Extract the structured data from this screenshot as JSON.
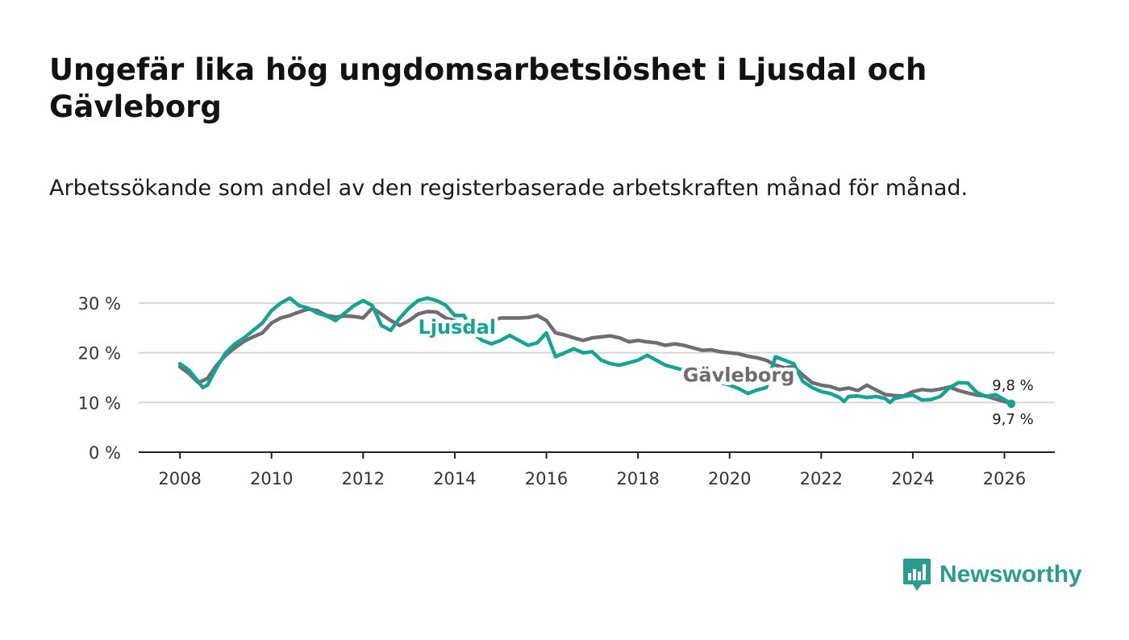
{
  "header": {
    "title": "Ungefär lika hög ungdomsarbetslöshet i Ljusdal och Gävleborg",
    "subtitle": "Arbetssökande som andel av den registerbaserade arbetskraften månad för månad."
  },
  "branding": {
    "name": "Newsworthy",
    "icon": "bar-chart-speech-bubble-icon"
  },
  "colors": {
    "ljusdal": "#15a396",
    "gavleborg": "#6e6e72",
    "grid": "#d7d7d7",
    "axis": "#222222",
    "brand": "#2b9c92"
  },
  "chart_data": {
    "type": "line",
    "title": "Ungefär lika hög ungdomsarbetslöshet i Ljusdal och Gävleborg",
    "xlabel": "",
    "ylabel": "",
    "xlim": [
      2007.1,
      2027.1
    ],
    "ylim": [
      0,
      30
    ],
    "y_ticks": [
      0,
      10,
      20,
      30
    ],
    "y_tick_labels": [
      "0 %",
      "10 %",
      "20 %",
      "30 %"
    ],
    "x_ticks": [
      2008,
      2010,
      2012,
      2014,
      2016,
      2018,
      2020,
      2022,
      2024,
      2026
    ],
    "x_tick_labels": [
      "2008",
      "2010",
      "2012",
      "2014",
      "2016",
      "2018",
      "2020",
      "2022",
      "2024",
      "2026"
    ],
    "grid": true,
    "series": [
      {
        "name": "Gävleborg",
        "label": "Gävleborg",
        "end_label": "9,8 %",
        "points": [
          [
            2008.0,
            17.2
          ],
          [
            2008.2,
            15.8
          ],
          [
            2008.4,
            14.0
          ],
          [
            2008.6,
            14.8
          ],
          [
            2008.8,
            17.5
          ],
          [
            2009.0,
            19.5
          ],
          [
            2009.2,
            21.0
          ],
          [
            2009.4,
            22.3
          ],
          [
            2009.6,
            23.2
          ],
          [
            2009.8,
            24.0
          ],
          [
            2010.0,
            26.0
          ],
          [
            2010.2,
            27.0
          ],
          [
            2010.4,
            27.5
          ],
          [
            2010.6,
            28.2
          ],
          [
            2010.8,
            28.8
          ],
          [
            2011.0,
            28.5
          ],
          [
            2011.2,
            27.5
          ],
          [
            2011.4,
            27.2
          ],
          [
            2011.6,
            27.4
          ],
          [
            2011.8,
            27.3
          ],
          [
            2012.0,
            27.0
          ],
          [
            2012.2,
            29.0
          ],
          [
            2012.4,
            27.8
          ],
          [
            2012.6,
            26.5
          ],
          [
            2012.8,
            25.5
          ],
          [
            2013.0,
            26.5
          ],
          [
            2013.2,
            27.8
          ],
          [
            2013.4,
            28.3
          ],
          [
            2013.6,
            28.2
          ],
          [
            2013.8,
            27.0
          ],
          [
            2014.0,
            26.5
          ],
          [
            2014.2,
            25.6
          ],
          [
            2014.4,
            26.4
          ],
          [
            2014.6,
            26.0
          ],
          [
            2014.8,
            26.5
          ],
          [
            2015.0,
            27.0
          ],
          [
            2015.2,
            27.0
          ],
          [
            2015.4,
            27.0
          ],
          [
            2015.6,
            27.1
          ],
          [
            2015.8,
            27.5
          ],
          [
            2016.0,
            26.5
          ],
          [
            2016.2,
            24.0
          ],
          [
            2016.4,
            23.6
          ],
          [
            2016.6,
            23.0
          ],
          [
            2016.8,
            22.5
          ],
          [
            2017.0,
            23.0
          ],
          [
            2017.2,
            23.2
          ],
          [
            2017.4,
            23.4
          ],
          [
            2017.6,
            23.0
          ],
          [
            2017.8,
            22.2
          ],
          [
            2018.0,
            22.5
          ],
          [
            2018.2,
            22.2
          ],
          [
            2018.4,
            22.0
          ],
          [
            2018.6,
            21.5
          ],
          [
            2018.8,
            21.8
          ],
          [
            2019.0,
            21.5
          ],
          [
            2019.2,
            21.0
          ],
          [
            2019.4,
            20.5
          ],
          [
            2019.6,
            20.6
          ],
          [
            2019.8,
            20.2
          ],
          [
            2020.0,
            20.0
          ],
          [
            2020.2,
            19.8
          ],
          [
            2020.4,
            19.3
          ],
          [
            2020.6,
            19.0
          ],
          [
            2020.8,
            18.5
          ],
          [
            2021.0,
            17.5
          ],
          [
            2021.2,
            17.0
          ],
          [
            2021.4,
            17.2
          ],
          [
            2021.6,
            15.5
          ],
          [
            2021.8,
            14.0
          ],
          [
            2022.0,
            13.5
          ],
          [
            2022.2,
            13.2
          ],
          [
            2022.4,
            12.6
          ],
          [
            2022.6,
            12.9
          ],
          [
            2022.8,
            12.4
          ],
          [
            2023.0,
            13.5
          ],
          [
            2023.2,
            12.5
          ],
          [
            2023.4,
            11.6
          ],
          [
            2023.6,
            11.4
          ],
          [
            2023.8,
            11.3
          ],
          [
            2024.0,
            12.2
          ],
          [
            2024.2,
            12.6
          ],
          [
            2024.4,
            12.4
          ],
          [
            2024.6,
            12.7
          ],
          [
            2024.8,
            13.1
          ],
          [
            2025.0,
            12.4
          ],
          [
            2025.2,
            11.9
          ],
          [
            2025.4,
            11.5
          ],
          [
            2025.6,
            11.3
          ],
          [
            2025.8,
            10.7
          ],
          [
            2026.0,
            10.2
          ],
          [
            2026.15,
            9.8
          ]
        ]
      },
      {
        "name": "Ljusdal",
        "label": "Ljusdal",
        "end_label": "9,7 %",
        "points": [
          [
            2008.0,
            17.8
          ],
          [
            2008.2,
            16.5
          ],
          [
            2008.4,
            14.2
          ],
          [
            2008.5,
            13.0
          ],
          [
            2008.6,
            13.5
          ],
          [
            2008.8,
            17.0
          ],
          [
            2009.0,
            20.0
          ],
          [
            2009.2,
            21.8
          ],
          [
            2009.4,
            23.0
          ],
          [
            2009.6,
            24.5
          ],
          [
            2009.8,
            26.0
          ],
          [
            2010.0,
            28.5
          ],
          [
            2010.2,
            30.0
          ],
          [
            2010.4,
            31.0
          ],
          [
            2010.6,
            29.5
          ],
          [
            2010.8,
            29.0
          ],
          [
            2011.0,
            28.0
          ],
          [
            2011.2,
            27.4
          ],
          [
            2011.4,
            26.5
          ],
          [
            2011.6,
            28.0
          ],
          [
            2011.8,
            29.5
          ],
          [
            2012.0,
            30.5
          ],
          [
            2012.2,
            29.5
          ],
          [
            2012.4,
            25.5
          ],
          [
            2012.6,
            24.5
          ],
          [
            2012.8,
            27.0
          ],
          [
            2013.0,
            29.0
          ],
          [
            2013.2,
            30.5
          ],
          [
            2013.4,
            31.0
          ],
          [
            2013.6,
            30.5
          ],
          [
            2013.8,
            29.6
          ],
          [
            2014.0,
            27.5
          ],
          [
            2014.2,
            27.5
          ],
          [
            2014.4,
            24.0
          ],
          [
            2014.6,
            22.5
          ],
          [
            2014.8,
            21.8
          ],
          [
            2015.0,
            22.5
          ],
          [
            2015.2,
            23.5
          ],
          [
            2015.4,
            22.5
          ],
          [
            2015.6,
            21.5
          ],
          [
            2015.8,
            22.0
          ],
          [
            2016.0,
            24.0
          ],
          [
            2016.2,
            19.2
          ],
          [
            2016.4,
            20.0
          ],
          [
            2016.6,
            20.8
          ],
          [
            2016.8,
            20.0
          ],
          [
            2017.0,
            20.2
          ],
          [
            2017.2,
            18.5
          ],
          [
            2017.4,
            17.8
          ],
          [
            2017.6,
            17.5
          ],
          [
            2017.8,
            18.0
          ],
          [
            2018.0,
            18.5
          ],
          [
            2018.2,
            19.5
          ],
          [
            2018.4,
            18.5
          ],
          [
            2018.6,
            17.5
          ],
          [
            2018.8,
            17.0
          ],
          [
            2019.0,
            16.5
          ],
          [
            2019.2,
            16.0
          ],
          [
            2019.4,
            15.5
          ],
          [
            2019.6,
            14.5
          ],
          [
            2019.8,
            14.0
          ],
          [
            2020.0,
            13.5
          ],
          [
            2020.2,
            12.8
          ],
          [
            2020.4,
            11.8
          ],
          [
            2020.6,
            12.5
          ],
          [
            2020.8,
            13.0
          ],
          [
            2021.0,
            19.2
          ],
          [
            2021.2,
            18.5
          ],
          [
            2021.4,
            17.8
          ],
          [
            2021.6,
            14.2
          ],
          [
            2021.8,
            13.0
          ],
          [
            2022.0,
            12.2
          ],
          [
            2022.2,
            11.8
          ],
          [
            2022.4,
            11.0
          ],
          [
            2022.5,
            10.2
          ],
          [
            2022.6,
            11.2
          ],
          [
            2022.8,
            11.3
          ],
          [
            2023.0,
            11.0
          ],
          [
            2023.2,
            11.2
          ],
          [
            2023.4,
            10.8
          ],
          [
            2023.5,
            10.0
          ],
          [
            2023.6,
            10.8
          ],
          [
            2023.8,
            11.2
          ],
          [
            2024.0,
            11.5
          ],
          [
            2024.2,
            10.5
          ],
          [
            2024.4,
            10.6
          ],
          [
            2024.6,
            11.2
          ],
          [
            2024.8,
            13.0
          ],
          [
            2025.0,
            14.0
          ],
          [
            2025.2,
            13.9
          ],
          [
            2025.4,
            12.0
          ],
          [
            2025.6,
            11.2
          ],
          [
            2025.8,
            11.6
          ],
          [
            2026.0,
            10.6
          ],
          [
            2026.15,
            9.7
          ]
        ]
      }
    ]
  }
}
